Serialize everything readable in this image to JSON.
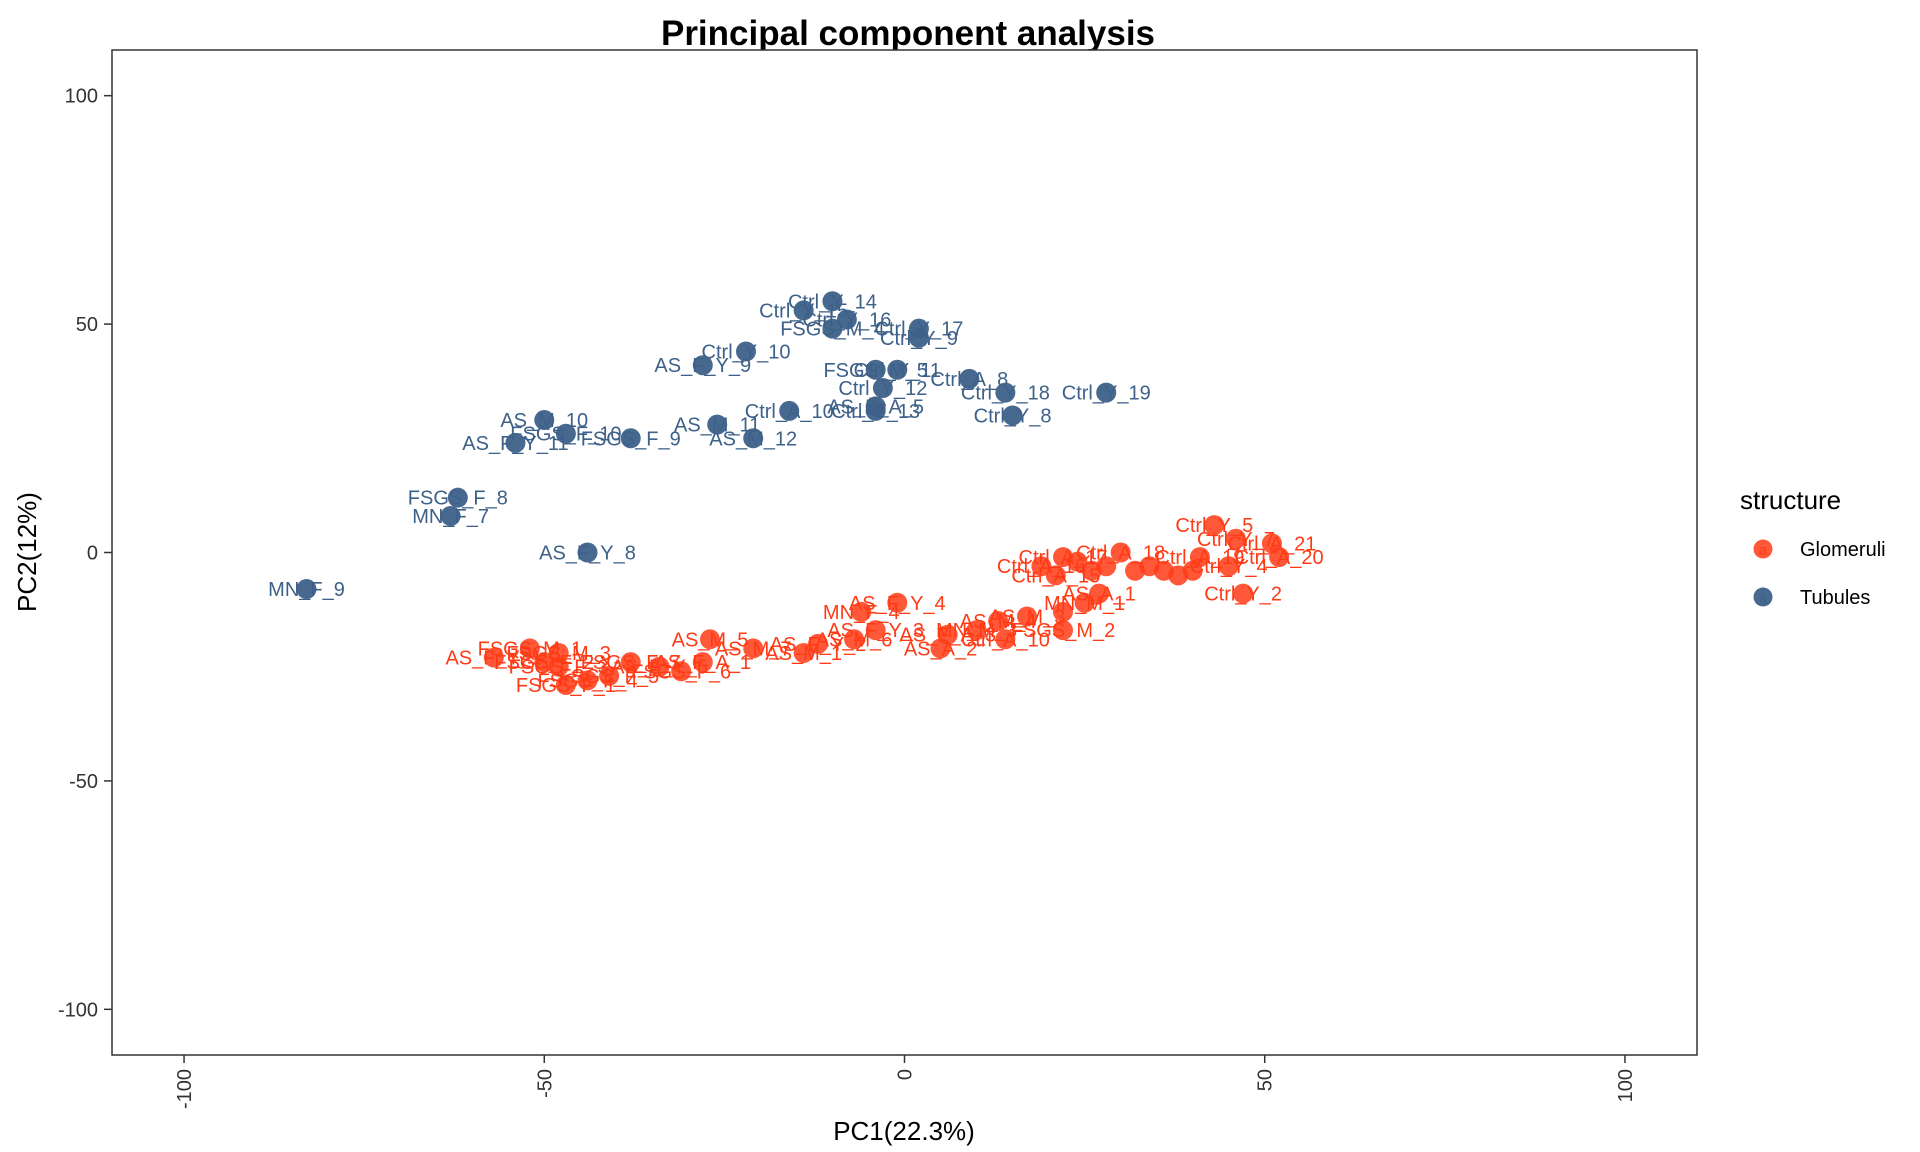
{
  "chart_data": {
    "type": "scatter",
    "title": "Principal component analysis",
    "xlabel": "PC1(22.3%)",
    "ylabel": "PC2(12%)",
    "xlim": [
      -110,
      110
    ],
    "ylim": [
      -110,
      110
    ],
    "xticks": [
      -100,
      -50,
      0,
      50,
      100
    ],
    "yticks": [
      -100,
      -50,
      0,
      50,
      100
    ],
    "grid": false,
    "legend": {
      "title": "structure",
      "position": "right",
      "entries": [
        {
          "name": "Glomeruli",
          "color": "#FF3B16"
        },
        {
          "name": "Tubules",
          "color": "#3E6189"
        }
      ]
    },
    "series": [
      {
        "name": "Tubules",
        "color": "#3E6189",
        "points": [
          {
            "x": -10,
            "y": 55,
            "label": "Ctrl_Y_14"
          },
          {
            "x": -14,
            "y": 53,
            "label": "Ctrl_Y_15"
          },
          {
            "x": -8,
            "y": 51,
            "label": "Ctrl_Y_16"
          },
          {
            "x": -10,
            "y": 49,
            "label": "FSGS_M_4"
          },
          {
            "x": 2,
            "y": 49,
            "label": "Ctrl_Y_17"
          },
          {
            "x": 2,
            "y": 47,
            "label": "Ctrl_Y_9"
          },
          {
            "x": -22,
            "y": 44,
            "label": "Ctrl_Y_10"
          },
          {
            "x": -28,
            "y": 41,
            "label": "AS_F_Y_9"
          },
          {
            "x": -4,
            "y": 40,
            "label": "FSGS_M_5"
          },
          {
            "x": -1,
            "y": 40,
            "label": "Ctrl_Y_11"
          },
          {
            "x": 9,
            "y": 38,
            "label": "Ctrl_A_8"
          },
          {
            "x": -3,
            "y": 36,
            "label": "Ctrl_Y_12"
          },
          {
            "x": 14,
            "y": 35,
            "label": "Ctrl_Y_18"
          },
          {
            "x": 28,
            "y": 35,
            "label": "Ctrl_Y_19"
          },
          {
            "x": -16,
            "y": 31,
            "label": "Ctrl_A_10"
          },
          {
            "x": -4,
            "y": 32,
            "label": "AS_F_A_5"
          },
          {
            "x": -4,
            "y": 31,
            "label": "Ctrl_Y_13"
          },
          {
            "x": 15,
            "y": 30,
            "label": "Ctrl_Y_8"
          },
          {
            "x": -50,
            "y": 29,
            "label": "AS_M_10"
          },
          {
            "x": -26,
            "y": 28,
            "label": "AS_M_11"
          },
          {
            "x": -47,
            "y": 26,
            "label": "FSGS_F_10"
          },
          {
            "x": -38,
            "y": 25,
            "label": "FSGS_F_9"
          },
          {
            "x": -21,
            "y": 25,
            "label": "AS_M_12"
          },
          {
            "x": -54,
            "y": 24,
            "label": "AS_F_Y_11"
          },
          {
            "x": -62,
            "y": 12,
            "label": "FSGS_F_8"
          },
          {
            "x": -63,
            "y": 8,
            "label": "MN_F_7"
          },
          {
            "x": -44,
            "y": 0,
            "label": "AS_F_Y_8"
          },
          {
            "x": -83,
            "y": -8,
            "label": "MN_F_9"
          }
        ]
      },
      {
        "name": "Glomeruli",
        "color": "#FF3B16",
        "points": [
          {
            "x": 43,
            "y": 6,
            "label": "Ctrl_Y_5"
          },
          {
            "x": 46,
            "y": 3,
            "label": "Ctrl_Y_7"
          },
          {
            "x": 51,
            "y": 2,
            "label": "Ctrl_A_21"
          },
          {
            "x": 52,
            "y": -1,
            "label": "Ctrl_A_20"
          },
          {
            "x": 47,
            "y": -9,
            "label": "Ctrl_Y_2"
          },
          {
            "x": 45,
            "y": -3,
            "label": "Ctrl_Y_4"
          },
          {
            "x": 41,
            "y": -1,
            "label": "Ctrl_A_19"
          },
          {
            "x": 40,
            "y": -4,
            "label": ""
          },
          {
            "x": 38,
            "y": -5,
            "label": ""
          },
          {
            "x": 36,
            "y": -4,
            "label": ""
          },
          {
            "x": 34,
            "y": -3,
            "label": ""
          },
          {
            "x": 32,
            "y": -4,
            "label": ""
          },
          {
            "x": 30,
            "y": 0,
            "label": "Ctrl_A_18"
          },
          {
            "x": 28,
            "y": -3,
            "label": ""
          },
          {
            "x": 26,
            "y": -4,
            "label": ""
          },
          {
            "x": 24,
            "y": -2,
            "label": ""
          },
          {
            "x": 22,
            "y": -1,
            "label": "Ctrl_A_17"
          },
          {
            "x": 19,
            "y": -3,
            "label": "Ctrl_A_16"
          },
          {
            "x": 21,
            "y": -5,
            "label": "Ctrl_A_15"
          },
          {
            "x": 27,
            "y": -9,
            "label": "AS_A_1"
          },
          {
            "x": 25,
            "y": -11,
            "label": "MN_M_1"
          },
          {
            "x": 22,
            "y": -13,
            "label": ""
          },
          {
            "x": 22,
            "y": -17,
            "label": "FSGS_M_2"
          },
          {
            "x": 17,
            "y": -14,
            "label": "AS_M_3"
          },
          {
            "x": 13,
            "y": -15,
            "label": "AS_M_4"
          },
          {
            "x": 14,
            "y": -19,
            "label": "Ctrl_A_10"
          },
          {
            "x": 10,
            "y": -17,
            "label": "MN_M_3"
          },
          {
            "x": 6,
            "y": -18,
            "label": "AS_F_A_3"
          },
          {
            "x": 5,
            "y": -21,
            "label": "AS_A_2"
          },
          {
            "x": -1,
            "y": -11,
            "label": "AS_F_Y_4"
          },
          {
            "x": -6,
            "y": -13,
            "label": "MN_F_4"
          },
          {
            "x": -4,
            "y": -17,
            "label": "AS_F_Y_3"
          },
          {
            "x": -7,
            "y": -19,
            "label": "AS_M_6"
          },
          {
            "x": -12,
            "y": -20,
            "label": "AS_F_Y_2"
          },
          {
            "x": -14,
            "y": -22,
            "label": "AS_M_1"
          },
          {
            "x": -21,
            "y": -21,
            "label": "AS_M_7"
          },
          {
            "x": -27,
            "y": -19,
            "label": "AS_M_5"
          },
          {
            "x": -28,
            "y": -24,
            "label": "AS_F_A_1"
          },
          {
            "x": -34,
            "y": -25,
            "label": "AS_F_Y_5"
          },
          {
            "x": -38,
            "y": -24,
            "label": "FSGS_F_7"
          },
          {
            "x": -31,
            "y": -26,
            "label": "FSGS_F_6"
          },
          {
            "x": -41,
            "y": -27,
            "label": "FSGS_F_5"
          },
          {
            "x": -44,
            "y": -28,
            "label": "FSGS_F_4"
          },
          {
            "x": -47,
            "y": -29,
            "label": "FSGS_F_1"
          },
          {
            "x": -48,
            "y": -25,
            "label": "FSGS_F_3"
          },
          {
            "x": -48,
            "y": -22,
            "label": "FSGS_M_3"
          },
          {
            "x": -52,
            "y": -21,
            "label": "FSGS_M_1"
          },
          {
            "x": -57,
            "y": -23,
            "label": "AS_F_Y_1"
          },
          {
            "x": -50,
            "y": -24,
            "label": "FSGS_F_2"
          }
        ]
      }
    ]
  }
}
